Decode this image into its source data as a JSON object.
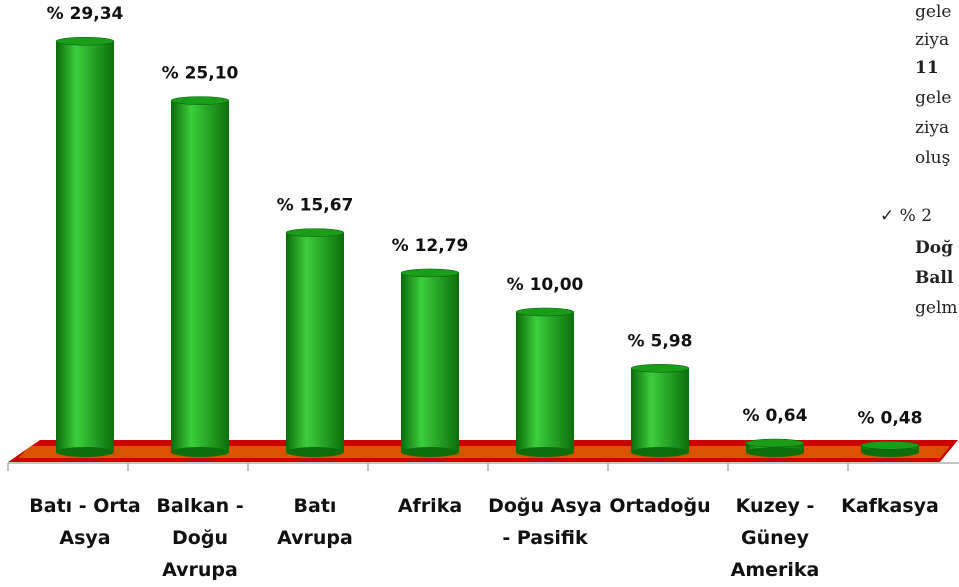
{
  "chart_data": {
    "type": "bar",
    "categories": [
      "Batı - Orta Asya",
      "Balkan - Doğu Avrupa",
      "Batı Avrupa",
      "Afrika",
      "Doğu Asya - Pasifik",
      "Ortadoğu",
      "Kuzey - Güney Amerika",
      "Kafkasya"
    ],
    "values": [
      29.34,
      25.1,
      15.67,
      12.79,
      10.0,
      5.98,
      0.64,
      0.48
    ],
    "value_labels": [
      "% 29,34",
      "% 25,10",
      "% 15,67",
      "% 12,79",
      "% 10,00",
      "% 5,98",
      "% 0,64",
      "% 0,48"
    ],
    "color": "#1a9e1a",
    "ylim": [
      0,
      30
    ]
  },
  "side_text": [
    "gele",
    "ziya",
    "11",
    "gele",
    "ziya",
    "oluş",
    "✓  %  2",
    "Doğ",
    "Ball",
    "gelm"
  ]
}
